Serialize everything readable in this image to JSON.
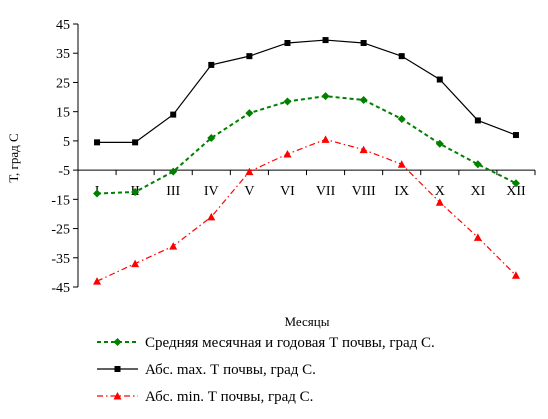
{
  "chart_data": {
    "type": "line",
    "title": "",
    "xlabel": "Месяцы",
    "ylabel": "Т, град С",
    "ylim": [
      -45,
      45
    ],
    "yticks": [
      45,
      35,
      25,
      15,
      5,
      -5,
      -15,
      -25,
      -35,
      -45
    ],
    "categories": [
      "I",
      "II",
      "III",
      "IV",
      "V",
      "VI",
      "VII",
      "VIII",
      "IX",
      "X",
      "XI",
      "XII"
    ],
    "grid": false,
    "legend_position": "bottom",
    "series": [
      {
        "name": "Средняя месячная и годовая Т почвы, град С.",
        "color": "#008000",
        "line_style": "dashed",
        "marker": "diamond",
        "values": [
          -13,
          -12.5,
          -5.5,
          6,
          14.5,
          18.5,
          20.3,
          19,
          12.5,
          4,
          -3,
          -9.5
        ]
      },
      {
        "name": "Абс. max. Т почвы, град С.",
        "color": "#000000",
        "line_style": "solid",
        "marker": "square",
        "values": [
          4.5,
          4.5,
          14,
          31,
          34,
          38.5,
          39.5,
          38.5,
          34,
          26,
          12,
          7
        ]
      },
      {
        "name": "Абс. min. Т почвы, град С.",
        "color": "#ff0000",
        "line_style": "dash-dot",
        "marker": "triangle",
        "values": [
          -43,
          -37,
          -31,
          -21,
          -5.5,
          0.5,
          5.5,
          2,
          -3,
          -16,
          -28,
          -41
        ]
      }
    ]
  }
}
